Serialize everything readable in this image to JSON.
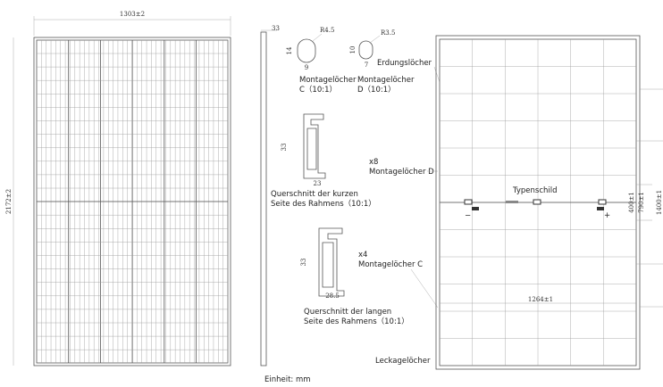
{
  "left_view": {
    "width": "1303±2",
    "height": "2172±2"
  },
  "side_view": {
    "thickness": "33"
  },
  "hole_c": {
    "radius": "R4.5",
    "height": "14",
    "width": "9",
    "caption": [
      "Montagelöcher",
      "C（10:1）"
    ]
  },
  "hole_d": {
    "radius": "R3.5",
    "height": "10",
    "width": "7",
    "caption": [
      "Montagelöcher",
      "D（10:1）"
    ]
  },
  "short_frame": {
    "height": "33",
    "width": "23",
    "caption": [
      "Querschnitt der kurzen",
      "Seite des Rahmens（10:1）"
    ]
  },
  "long_frame": {
    "height": "33",
    "width": "28.5",
    "caption": [
      "Querschnitt der langen",
      "Seite des Rahmens（10:1）"
    ]
  },
  "callouts": {
    "mount_d_count": "x8",
    "mount_d": "Montagelöcher D",
    "mount_c_count": "x4",
    "mount_c": "Montagelöcher C",
    "grounding": "Erdungslöcher",
    "nameplate": "Typenschild",
    "drain": "Leckagelöcher",
    "minus": "−",
    "plus": "+"
  },
  "right_view": {
    "dims": [
      "400±1",
      "790±1",
      "1400±1"
    ],
    "width": "1264±1"
  },
  "footer": {
    "unit": "Einheit: mm"
  }
}
